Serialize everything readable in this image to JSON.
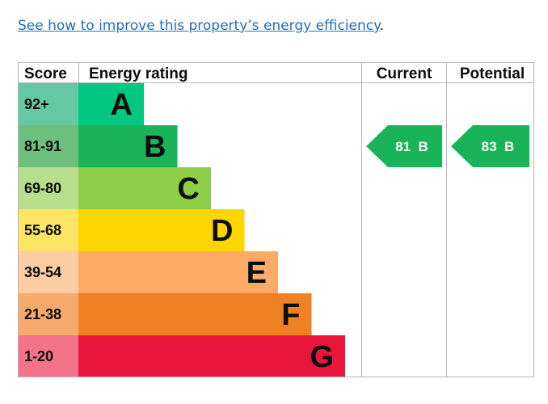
{
  "intro": {
    "link_text": "See how to improve this property’s energy efficiency",
    "trailing": "."
  },
  "chart_data": {
    "type": "table",
    "headers": {
      "score": "Score",
      "rating": "Energy rating",
      "current": "Current",
      "potential": "Potential"
    },
    "bands": [
      {
        "score": "92+",
        "letter": "A",
        "color": "#00c781",
        "score_bg": "#64c8a5",
        "text_color": "#0b0c0c"
      },
      {
        "score": "81-91",
        "letter": "B",
        "color": "#19b459",
        "score_bg": "#6dbf7e",
        "text_color": "#0b0c0c"
      },
      {
        "score": "69-80",
        "letter": "C",
        "color": "#8dce46",
        "score_bg": "#b7de8c",
        "text_color": "#0b0c0c"
      },
      {
        "score": "55-68",
        "letter": "D",
        "color": "#ffd500",
        "score_bg": "#ffe566",
        "text_color": "#0b0c0c"
      },
      {
        "score": "39-54",
        "letter": "E",
        "color": "#fcaa65",
        "score_bg": "#fdcca3",
        "text_color": "#0b0c0c"
      },
      {
        "score": "21-38",
        "letter": "F",
        "color": "#ef8023",
        "score_bg": "#f5a96a",
        "text_color": "#0b0c0c"
      },
      {
        "score": "1-20",
        "letter": "G",
        "color": "#e9153b",
        "score_bg": "#f47389",
        "text_color": "#0b0c0c"
      }
    ],
    "current": {
      "value": 81,
      "letter": "B",
      "label": "81  B",
      "color": "#19b459"
    },
    "potential": {
      "value": 83,
      "letter": "B",
      "label": "83  B",
      "color": "#19b459"
    }
  }
}
